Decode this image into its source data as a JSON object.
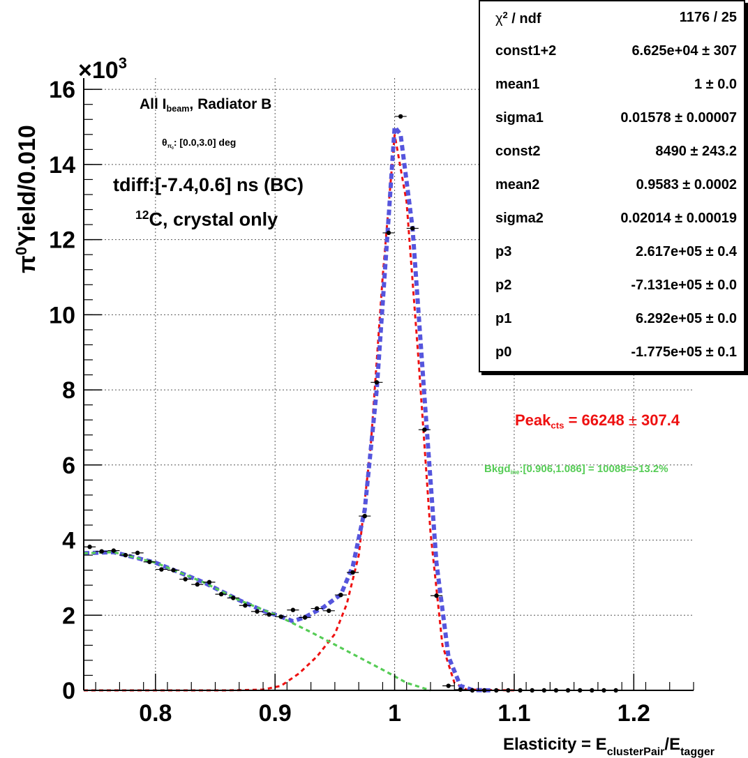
{
  "chart_data": {
    "type": "scatter",
    "xlabel": "Elasticity  = E",
    "xlabel_sub1": "clusterPair",
    "xlabel_mid": "/E",
    "xlabel_sub2": "tagger",
    "ylabel": "Yield/0.010",
    "ylabel_symbol": "π",
    "ylabel_sup": "0",
    "y_multiplier": "×10",
    "y_multiplier_exp": "3",
    "xlim": [
      0.74,
      1.25
    ],
    "ylim": [
      0,
      16.3
    ],
    "x_tick_labels": [
      "0.8",
      "0.9",
      "1",
      "1.1",
      "1.2"
    ],
    "y_tick_labels": [
      "0",
      "2",
      "4",
      "6",
      "8",
      "10",
      "12",
      "14",
      "16"
    ],
    "grid": true,
    "series": [
      {
        "points": [
          [
            0.745,
            3.82
          ],
          [
            0.755,
            3.7
          ],
          [
            0.765,
            3.72
          ],
          [
            0.775,
            3.6
          ],
          [
            0.785,
            3.66
          ],
          [
            0.795,
            3.42
          ],
          [
            0.805,
            3.22
          ],
          [
            0.815,
            3.2
          ],
          [
            0.825,
            2.96
          ],
          [
            0.835,
            2.82
          ],
          [
            0.845,
            2.88
          ],
          [
            0.855,
            2.56
          ],
          [
            0.865,
            2.46
          ],
          [
            0.875,
            2.26
          ],
          [
            0.885,
            2.1
          ],
          [
            0.895,
            2.02
          ],
          [
            0.905,
            1.96
          ],
          [
            0.915,
            2.14
          ],
          [
            0.925,
            1.94
          ],
          [
            0.935,
            2.18
          ],
          [
            0.945,
            2.12
          ],
          [
            0.955,
            2.54
          ],
          [
            0.965,
            3.14
          ],
          [
            0.975,
            4.64
          ],
          [
            0.985,
            8.2
          ],
          [
            0.995,
            12.18
          ],
          [
            1.005,
            15.28
          ],
          [
            1.015,
            12.3
          ],
          [
            1.025,
            6.94
          ],
          [
            1.035,
            2.52
          ],
          [
            1.045,
            0.12
          ],
          [
            1.055,
            0.02
          ],
          [
            1.065,
            0.0
          ],
          [
            1.075,
            0.0
          ],
          [
            1.085,
            0.0
          ],
          [
            1.095,
            0.0
          ],
          [
            1.105,
            0.0
          ],
          [
            1.115,
            0.0
          ],
          [
            1.125,
            0.0
          ],
          [
            1.135,
            0.0
          ],
          [
            1.145,
            0.0
          ],
          [
            1.155,
            0.0
          ],
          [
            1.165,
            0.0
          ],
          [
            1.175,
            0.0
          ],
          [
            1.185,
            0.0
          ]
        ]
      },
      {
        "color": "#ee1111",
        "line": [
          [
            0.74,
            0
          ],
          [
            0.86,
            0
          ],
          [
            0.89,
            0.02
          ],
          [
            0.905,
            0.12
          ],
          [
            0.92,
            0.45
          ],
          [
            0.935,
            0.9
          ],
          [
            0.95,
            1.5
          ],
          [
            0.96,
            2.3
          ],
          [
            0.97,
            3.6
          ],
          [
            0.98,
            6.5
          ],
          [
            0.99,
            11.0
          ],
          [
            1.0,
            14.8
          ],
          [
            1.01,
            13.0
          ],
          [
            1.02,
            8.8
          ],
          [
            1.03,
            4.2
          ],
          [
            1.04,
            1.2
          ],
          [
            1.05,
            0.2
          ],
          [
            1.06,
            0.02
          ],
          [
            1.1,
            0
          ]
        ]
      },
      {
        "color": "#5555dd",
        "line": [
          [
            0.74,
            3.65
          ],
          [
            0.765,
            3.68
          ],
          [
            0.8,
            3.4
          ],
          [
            0.84,
            2.88
          ],
          [
            0.87,
            2.4
          ],
          [
            0.89,
            2.12
          ],
          [
            0.905,
            1.96
          ],
          [
            0.915,
            1.84
          ],
          [
            0.925,
            1.95
          ],
          [
            0.94,
            2.2
          ],
          [
            0.955,
            2.55
          ],
          [
            0.965,
            3.3
          ],
          [
            0.975,
            4.8
          ],
          [
            0.985,
            8.0
          ],
          [
            0.995,
            12.6
          ],
          [
            1.0,
            15.0
          ],
          [
            1.005,
            14.8
          ],
          [
            1.015,
            12.3
          ],
          [
            1.025,
            7.8
          ],
          [
            1.035,
            3.4
          ],
          [
            1.045,
            0.9
          ],
          [
            1.055,
            0.12
          ],
          [
            1.065,
            0.01
          ],
          [
            1.08,
            0
          ]
        ]
      },
      {
        "color": "#55cc55",
        "line": [
          [
            0.74,
            3.65
          ],
          [
            0.765,
            3.68
          ],
          [
            0.8,
            3.4
          ],
          [
            0.84,
            2.88
          ],
          [
            0.87,
            2.4
          ],
          [
            0.9,
            2.02
          ],
          [
            0.93,
            1.55
          ],
          [
            0.96,
            1.05
          ],
          [
            0.99,
            0.55
          ],
          [
            1.01,
            0.2
          ],
          [
            1.03,
            0
          ]
        ]
      }
    ],
    "annotations": {
      "line1_a": "All I",
      "line1_sub": "beam",
      "line1_b": ", Radiator B",
      "line2_a": "θ",
      "line2_sub": "π",
      "line2_subsub": "0",
      "line2_b": ": [0.0,3.0] deg",
      "line3": "tdiff:[-7.4,0.6] ns (BC)",
      "line4_sup": "12",
      "line4": "C, crystal only",
      "peak_a": "Peak",
      "peak_sub": "cts",
      "peak_b": " =  66248",
      "peak_pm": " ± ",
      "peak_c": "307.4",
      "bkgd_a": "Bkgd",
      "bkgd_sub": "ine",
      "bkgd_b": ":[0.906,1.086] =  10088=>13.2%"
    },
    "stats": [
      {
        "key": "χ",
        "key_sup": "2",
        "key_b": " / ndf",
        "value": "1176 / 25"
      },
      {
        "key": "const1+2",
        "value": "6.625e+04 ± 307"
      },
      {
        "key": "mean1",
        "value": "1 ± 0.0"
      },
      {
        "key": "sigma1",
        "value": "0.01578 ± 0.00007"
      },
      {
        "key": "const2",
        "value": "8490 ± 243.2"
      },
      {
        "key": "mean2",
        "value": "0.9583 ± 0.0002"
      },
      {
        "key": "sigma2",
        "value": "0.02014 ± 0.00019"
      },
      {
        "key": "p3",
        "value": "2.617e+05 ± 0.4"
      },
      {
        "key": "p2",
        "value": "-7.131e+05 ± 0.0"
      },
      {
        "key": "p1",
        "value": "6.292e+05 ± 0.0"
      },
      {
        "key": "p0",
        "value": "-1.775e+05 ± 0.1"
      }
    ],
    "colors": {
      "data": "#000000",
      "signal": "#ee1111",
      "total": "#5555dd",
      "background": "#55cc55",
      "peak_text": "#ee1111",
      "bkgd_text": "#55cc55"
    }
  }
}
